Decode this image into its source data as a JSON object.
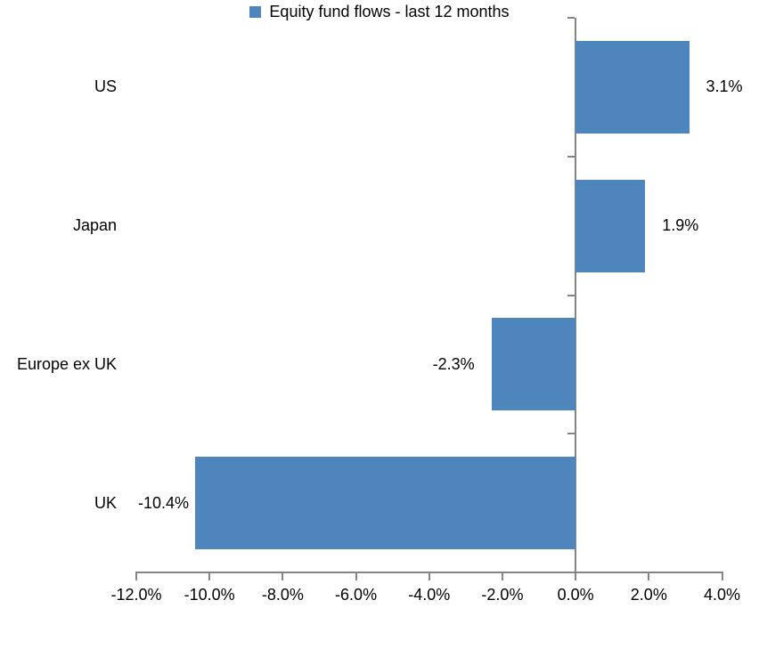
{
  "chart_data": {
    "type": "bar",
    "orientation": "horizontal",
    "title": "",
    "categories": [
      "US",
      "Japan",
      "Europe ex UK",
      "UK"
    ],
    "values": [
      3.1,
      1.9,
      -2.3,
      -10.4
    ],
    "data_labels": [
      "3.1%",
      "1.9%",
      "-2.3%",
      "-10.4%"
    ],
    "legend": {
      "label": "Equity fund flows - last 12 months",
      "position": "bottom",
      "swatch": "square"
    },
    "x_axis": {
      "min": -12,
      "max": 4,
      "tick_step": 2,
      "tick_labels": [
        "-12.0%",
        "-10.0%",
        "-8.0%",
        "-6.0%",
        "-4.0%",
        "-2.0%",
        "0.0%",
        "2.0%",
        "4.0%"
      ],
      "format": "percent"
    },
    "y_axis": {
      "tick_marks": "category-boundaries"
    },
    "grid": false,
    "data_label_position": "outside-end",
    "colors": {
      "bar": "#4E85BD",
      "axis": "#858585",
      "text": "#000000",
      "background": "#FFFFFF"
    }
  }
}
